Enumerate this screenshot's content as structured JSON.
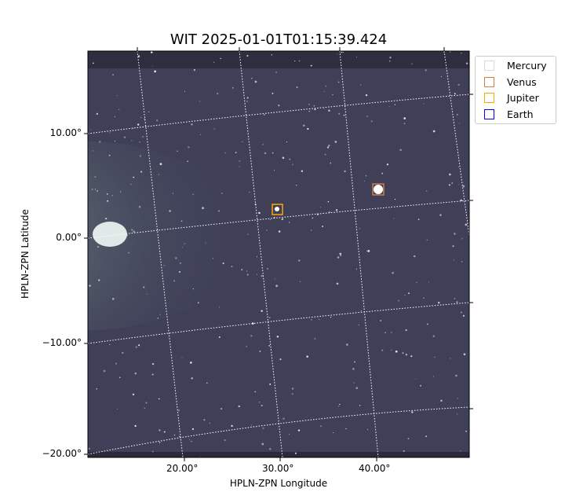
{
  "chart_data": {
    "type": "heatmap",
    "title": "WIT 2025-01-01T01:15:39.424",
    "xlabel": "HPLN-ZPN Longitude",
    "ylabel": "HPLN-ZPN Latitude",
    "x_ticks": [
      "20.00°",
      "30.00°",
      "40.00°"
    ],
    "y_ticks": [
      "10.00°",
      "0.00°",
      "−10.00°",
      "−20.00°"
    ],
    "grid": true,
    "colormap": "bone",
    "legend_position": "outside-top-right",
    "legend": [
      {
        "name": "Mercury",
        "color": "#d9d9d9"
      },
      {
        "name": "Venus",
        "color": "#cd7f45"
      },
      {
        "name": "Jupiter",
        "color": "#ffa500"
      },
      {
        "name": "Earth",
        "color": "#0000ff"
      }
    ],
    "markers": [
      {
        "name": "Jupiter",
        "lon": 29.5,
        "lat": 2.8,
        "color": "#ffa500"
      },
      {
        "name": "Venus",
        "lon": 40.2,
        "lat": 4.7,
        "color": "#cd7f45"
      }
    ]
  }
}
